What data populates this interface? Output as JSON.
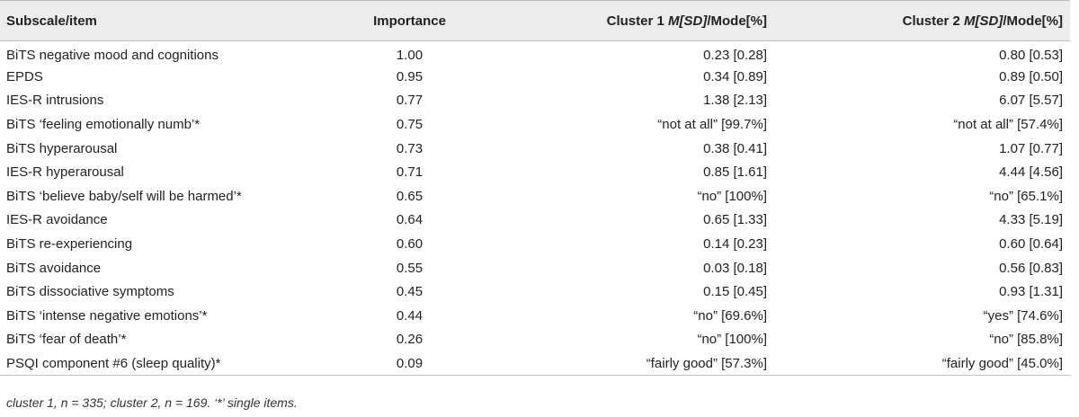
{
  "table": {
    "headers": {
      "subscale": "Subscale/item",
      "importance": "Importance",
      "cluster1_prefix": "Cluster 1 ",
      "cluster1_stat": "M[SD]",
      "cluster1_suffix": "/Mode[%]",
      "cluster2_prefix": "Cluster 2 ",
      "cluster2_stat": "M[SD]",
      "cluster2_suffix": "/Mode[%]"
    },
    "rows": [
      {
        "item": "BiTS negative mood and cognitions",
        "importance": "1.00",
        "cluster1": "0.23 [0.28]",
        "cluster2": "0.80 [0.53]"
      },
      {
        "item": "EPDS",
        "importance": "0.95",
        "cluster1": "0.34 [0.89]",
        "cluster2": "0.89 [0.50]"
      },
      {
        "item": "IES-R intrusions",
        "importance": "0.77",
        "cluster1": "1.38 [2.13]",
        "cluster2": "6.07 [5.57]"
      },
      {
        "item": "BiTS ‘feeling emotionally numb’*",
        "importance": "0.75",
        "cluster1": "“not at all” [99.7%]",
        "cluster2": "“not at all” [57.4%]"
      },
      {
        "item": "BiTS hyperarousal",
        "importance": "0.73",
        "cluster1": "0.38 [0.41]",
        "cluster2": "1.07 [0.77]"
      },
      {
        "item": "IES-R hyperarousal",
        "importance": "0.71",
        "cluster1": "0.85 [1.61]",
        "cluster2": "4.44 [4.56]"
      },
      {
        "item": "BiTS ‘believe baby/self will be harmed’*",
        "importance": "0.65",
        "cluster1": "“no” [100%]",
        "cluster2": "“no” [65.1%]"
      },
      {
        "item": "IES-R avoidance",
        "importance": "0.64",
        "cluster1": "0.65 [1.33]",
        "cluster2": "4.33 [5.19]"
      },
      {
        "item": "BiTS re-experiencing",
        "importance": "0.60",
        "cluster1": "0.14 [0.23]",
        "cluster2": "0.60 [0.64]"
      },
      {
        "item": "BiTS avoidance",
        "importance": "0.55",
        "cluster1": "0.03 [0.18]",
        "cluster2": "0.56 [0.83]"
      },
      {
        "item": "BiTS dissociative symptoms",
        "importance": "0.45",
        "cluster1": "0.15 [0.45]",
        "cluster2": "0.93 [1.31]"
      },
      {
        "item": "BiTS ‘intense negative emotions’*",
        "importance": "0.44",
        "cluster1": "“no” [69.6%]",
        "cluster2": "“yes” [74.6%]"
      },
      {
        "item": "BiTS ‘fear of death’*",
        "importance": "0.26",
        "cluster1": "“no” [100%]",
        "cluster2": "“no” [85.8%]"
      },
      {
        "item": "PSQI component #6 (sleep quality)*",
        "importance": "0.09",
        "cluster1": "“fairly good” [57.3%]",
        "cluster2": "“fairly good” [45.0%]"
      }
    ]
  },
  "footnote": "cluster 1, n = 335; cluster 2, n = 169. ‘*’ single items.",
  "colors": {
    "header_bg": "#ececec",
    "text": "#222222",
    "rule": "#bdbdbd"
  }
}
